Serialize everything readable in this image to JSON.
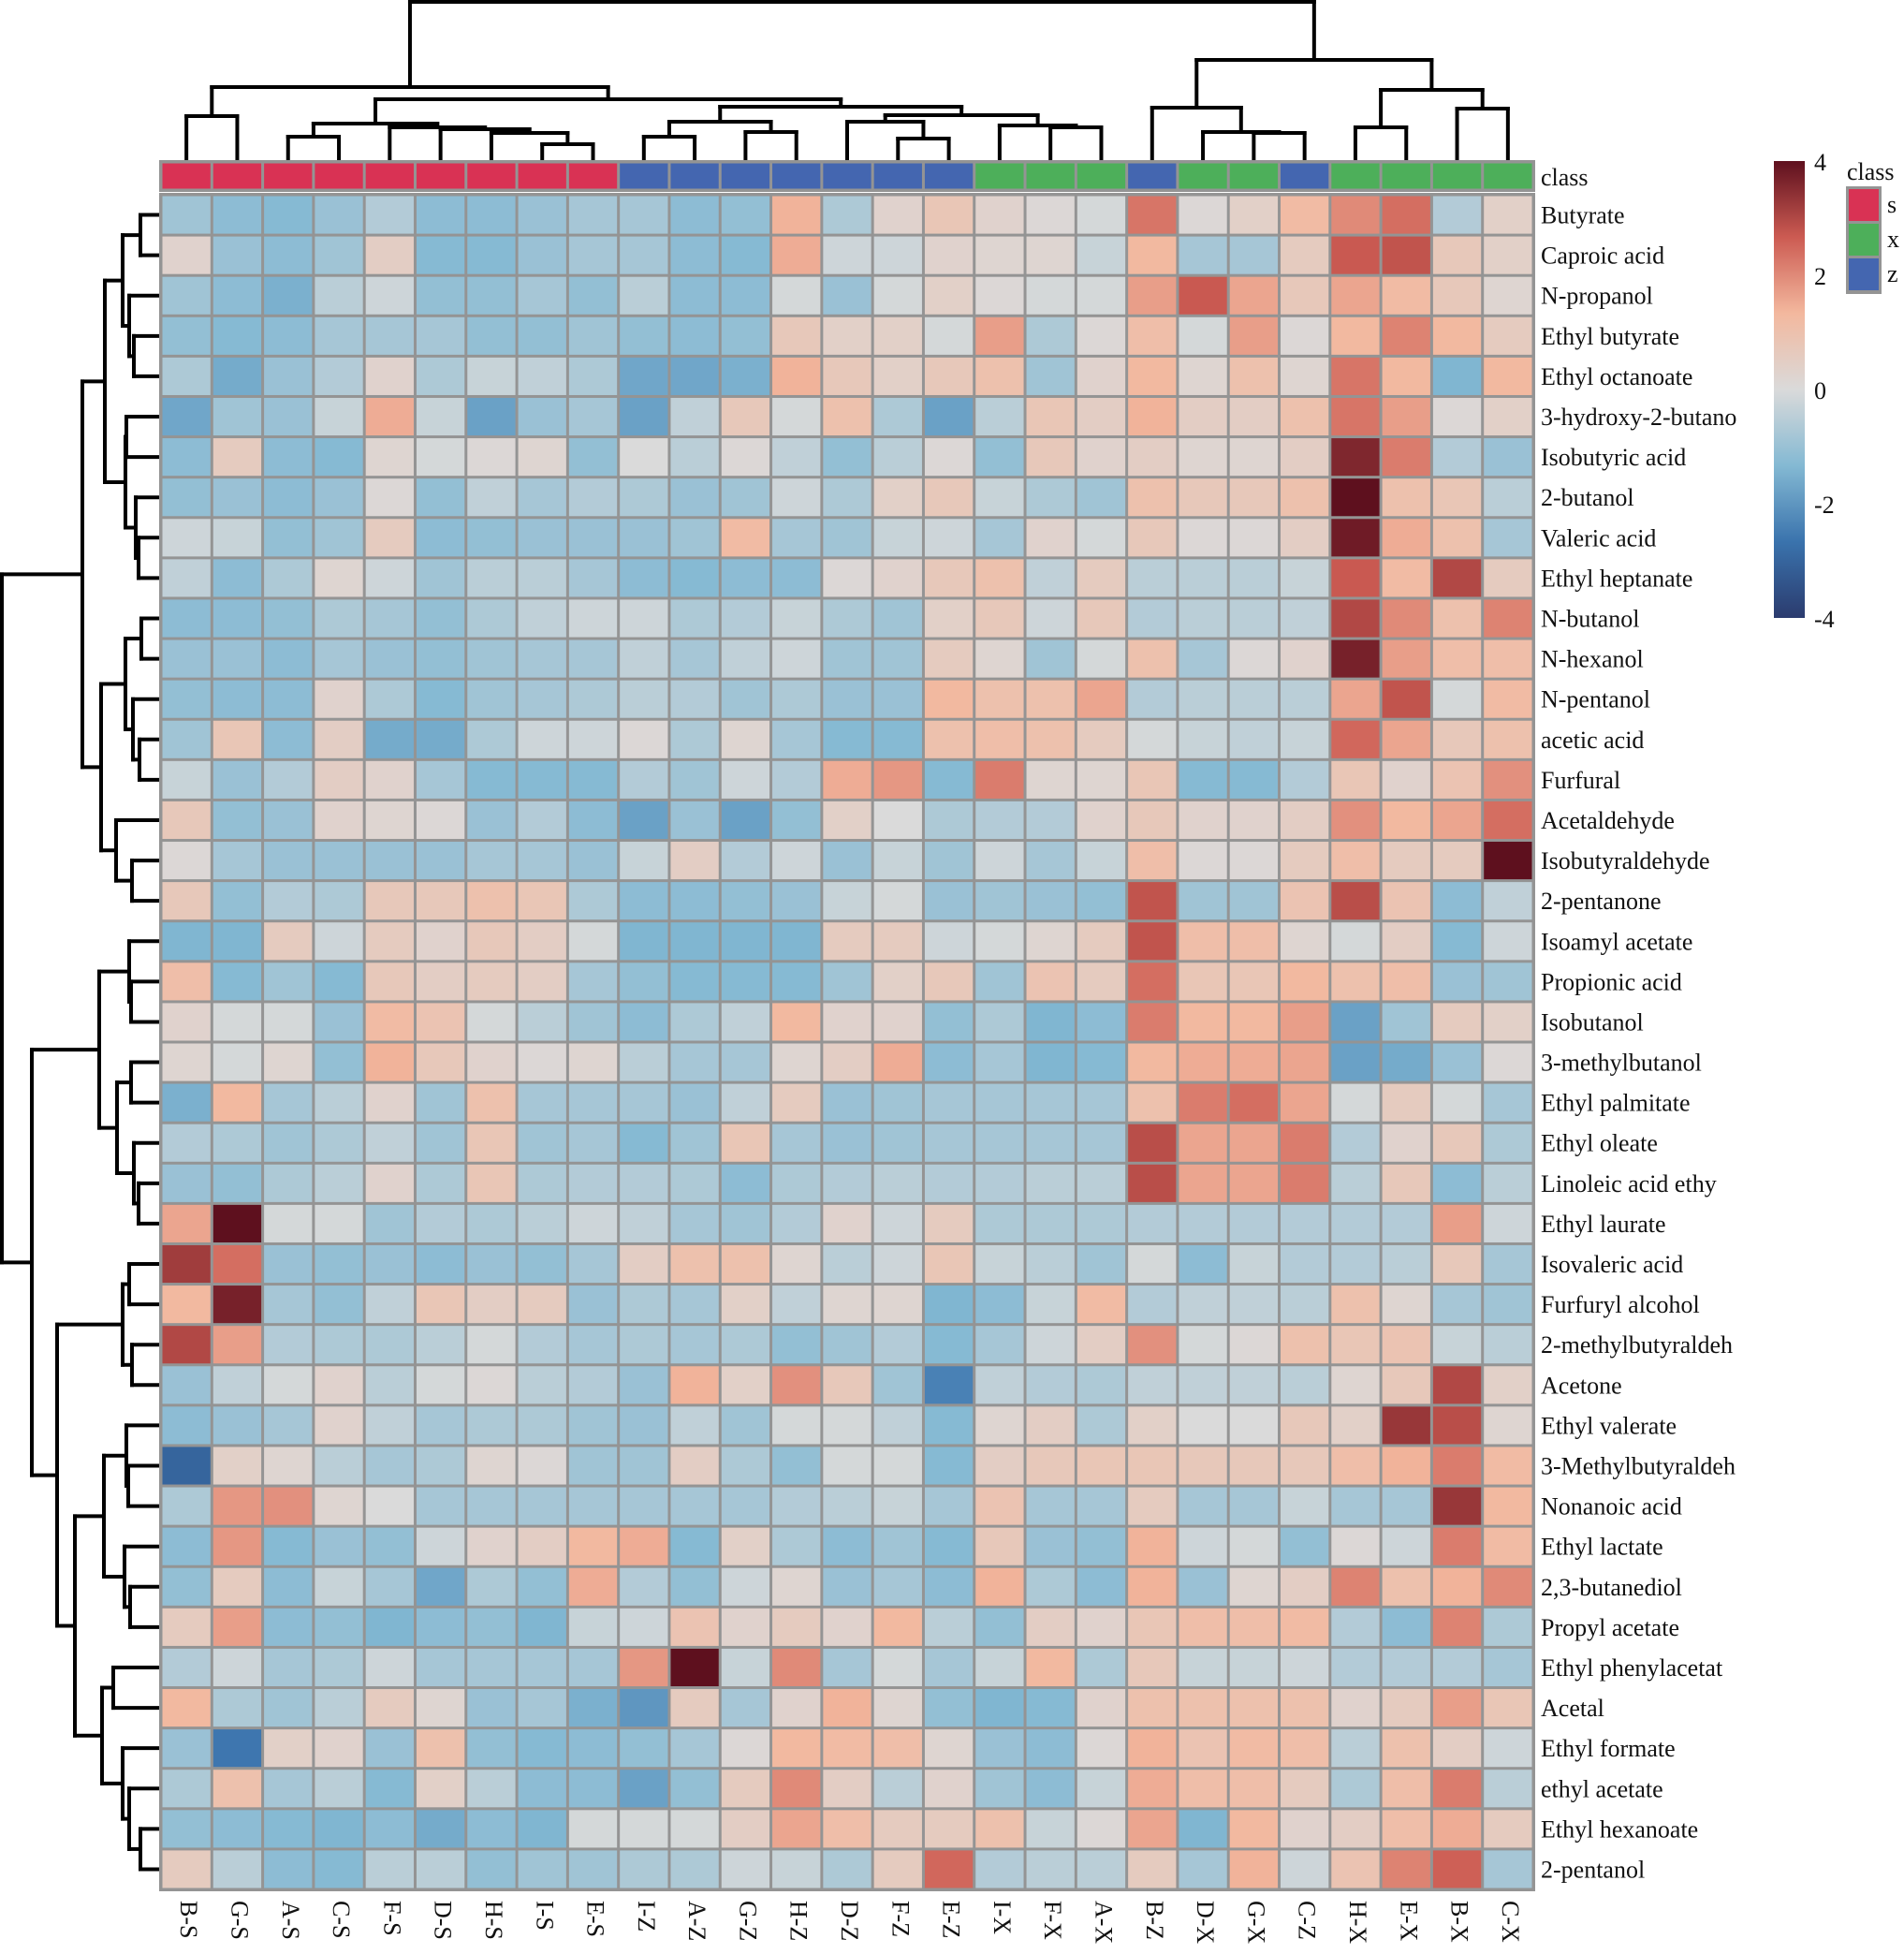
{
  "chart_data": {
    "type": "heatmap",
    "title": "",
    "columns": [
      "B-S",
      "G-S",
      "A-S",
      "C-S",
      "F-S",
      "D-S",
      "H-S",
      "I-S",
      "E-S",
      "I-Z",
      "A-Z",
      "G-Z",
      "H-Z",
      "D-Z",
      "F-Z",
      "E-Z",
      "I-X",
      "F-X",
      "A-X",
      "B-Z",
      "D-X",
      "G-X",
      "C-Z",
      "H-X",
      "E-X",
      "B-X",
      "C-X"
    ],
    "column_class": [
      "s",
      "s",
      "s",
      "s",
      "s",
      "s",
      "s",
      "s",
      "s",
      "z",
      "z",
      "z",
      "z",
      "z",
      "z",
      "z",
      "x",
      "x",
      "x",
      "z",
      "x",
      "x",
      "z",
      "x",
      "x",
      "x",
      "x"
    ],
    "rows": [
      "Butyrate",
      "Caproic acid",
      "N-propanol",
      "Ethyl butyrate",
      "Ethyl octanoate",
      "3-hydroxy-2-butano",
      "Isobutyric acid",
      "2-butanol",
      "Valeric acid",
      "Ethyl heptanate",
      "N-butanol",
      "N-hexanol",
      "N-pentanol",
      "acetic acid",
      "Furfural",
      "Acetaldehyde",
      "Isobutyraldehyde",
      "2-pentanone",
      "Isoamyl acetate",
      "Propionic acid",
      "Isobutanol",
      "3-methylbutanol",
      "Ethyl palmitate",
      "Ethyl oleate",
      "Linoleic acid ethy",
      "Ethyl laurate",
      "Isovaleric acid",
      "Furfuryl alcohol",
      "2-methylbutyraldeh",
      "Acetone",
      "Ethyl valerate",
      "3-Methylbutyraldeh",
      "Nonanoic acid",
      "Ethyl lactate",
      "2,3-butanediol",
      "Propyl acetate",
      "Ethyl phenylacetat",
      "Acetal",
      "Ethyl formate",
      "ethyl acetate",
      "Ethyl hexanoate",
      "2-pentanol"
    ],
    "values": [
      [
        -0.9,
        -1.2,
        -1.3,
        -1.0,
        -0.6,
        -1.2,
        -1.2,
        -1.0,
        -0.8,
        -0.8,
        -1.2,
        -1.1,
        1.4,
        -0.7,
        0.3,
        0.8,
        0.3,
        0.1,
        -0.1,
        2.3,
        0.1,
        0.4,
        1.2,
        2.0,
        2.4,
        -0.6,
        0.4
      ],
      [
        0.3,
        -1.0,
        -1.2,
        -0.9,
        0.5,
        -1.3,
        -1.3,
        -1.0,
        -0.8,
        -0.8,
        -1.2,
        -1.3,
        1.5,
        -0.2,
        -0.2,
        0.3,
        0.2,
        0.2,
        -0.3,
        1.3,
        -0.8,
        -0.8,
        0.6,
        2.7,
        2.8,
        0.7,
        0.4
      ],
      [
        -0.9,
        -1.2,
        -1.5,
        -0.5,
        -0.2,
        -1.1,
        -1.1,
        -0.8,
        -1.1,
        -0.5,
        -1.2,
        -1.2,
        -0.1,
        -1.0,
        -0.1,
        0.4,
        0.1,
        -0.1,
        -0.1,
        1.7,
        2.7,
        1.6,
        0.7,
        1.6,
        1.2,
        0.7,
        0.2
      ],
      [
        -1.1,
        -1.3,
        -1.2,
        -0.8,
        -0.8,
        -0.8,
        -1.1,
        -1.1,
        -0.9,
        -1.1,
        -1.2,
        -1.1,
        0.7,
        0.4,
        0.4,
        -0.1,
        1.7,
        -0.7,
        0.1,
        1.1,
        -0.1,
        1.7,
        0.1,
        1.3,
        2.1,
        1.3,
        0.6
      ],
      [
        -0.7,
        -1.6,
        -1.0,
        -0.6,
        0.3,
        -0.7,
        -0.3,
        -0.4,
        -0.7,
        -1.7,
        -1.7,
        -1.5,
        1.4,
        0.7,
        0.4,
        0.7,
        1.0,
        -0.9,
        0.3,
        1.3,
        0.2,
        1.0,
        0.2,
        2.3,
        1.3,
        -1.4,
        1.3
      ],
      [
        -1.7,
        -0.9,
        -1.0,
        -0.3,
        1.5,
        -0.3,
        -1.8,
        -1.0,
        -0.8,
        -1.8,
        -0.4,
        0.7,
        -0.1,
        1.0,
        -0.7,
        -1.8,
        -0.5,
        0.8,
        0.5,
        1.4,
        0.5,
        0.5,
        1.0,
        2.3,
        1.7,
        0.1,
        0.4
      ],
      [
        -1.2,
        0.6,
        -1.2,
        -1.3,
        0.2,
        -0.1,
        0.1,
        0.2,
        -1.1,
        0.0,
        -0.5,
        0.1,
        -0.4,
        -1.1,
        -0.5,
        0.1,
        -1.1,
        0.7,
        0.3,
        0.5,
        0.2,
        0.2,
        0.5,
        3.6,
        2.2,
        -0.6,
        -1.0
      ],
      [
        -1.1,
        -1.0,
        -1.2,
        -1.0,
        0.1,
        -1.1,
        -0.4,
        -0.8,
        -0.6,
        -0.7,
        -1.0,
        -0.9,
        -0.2,
        -0.7,
        0.4,
        0.7,
        -0.3,
        -0.7,
        -0.9,
        1.0,
        0.7,
        0.7,
        1.0,
        4.0,
        1.0,
        0.8,
        -0.5
      ],
      [
        -0.2,
        -0.3,
        -1.1,
        -0.9,
        0.6,
        -1.2,
        -1.1,
        -1.0,
        -1.0,
        -1.0,
        -0.9,
        1.2,
        -0.8,
        -0.9,
        -0.3,
        -0.2,
        -0.8,
        0.3,
        -0.1,
        0.7,
        0.1,
        0.1,
        0.5,
        3.8,
        1.5,
        1.0,
        -0.8
      ],
      [
        -0.4,
        -1.2,
        -0.7,
        0.2,
        -0.2,
        -0.9,
        -0.5,
        -0.5,
        -0.8,
        -1.2,
        -1.3,
        -1.2,
        -1.2,
        0.1,
        0.3,
        0.7,
        1.0,
        -0.4,
        0.6,
        -0.5,
        -0.5,
        -0.5,
        -0.3,
        2.7,
        1.2,
        3.0,
        0.6
      ],
      [
        -1.2,
        -1.2,
        -1.1,
        -0.7,
        -0.8,
        -1.1,
        -0.7,
        -0.4,
        -0.2,
        -0.2,
        -0.7,
        -0.6,
        -0.3,
        -0.7,
        -0.9,
        0.4,
        0.7,
        -0.2,
        0.7,
        -0.6,
        -0.5,
        -0.5,
        -0.4,
        3.0,
        2.0,
        1.0,
        2.1
      ],
      [
        -1.0,
        -1.0,
        -1.2,
        -0.8,
        -1.0,
        -1.1,
        -0.9,
        -0.8,
        -0.8,
        -0.4,
        -0.8,
        -0.4,
        -0.2,
        -0.9,
        -0.9,
        0.6,
        0.2,
        -0.9,
        -0.1,
        1.0,
        -0.8,
        0.1,
        0.3,
        3.7,
        1.7,
        1.1,
        1.1
      ],
      [
        -1.1,
        -1.2,
        -1.2,
        0.3,
        -0.7,
        -1.3,
        -0.9,
        -0.8,
        -0.7,
        -0.5,
        -0.6,
        -0.9,
        -0.7,
        -1.0,
        -1.0,
        1.3,
        1.0,
        1.0,
        1.6,
        -0.6,
        -0.5,
        -0.5,
        -0.5,
        1.6,
        2.8,
        -0.1,
        1.2
      ],
      [
        -0.9,
        0.8,
        -1.2,
        0.5,
        -1.6,
        -1.6,
        -0.7,
        -0.2,
        -0.2,
        0.1,
        -0.7,
        0.2,
        -0.8,
        -1.3,
        -1.3,
        1.0,
        1.1,
        1.0,
        0.6,
        -0.1,
        -0.3,
        -0.4,
        -0.3,
        2.5,
        1.6,
        0.7,
        1.0
      ],
      [
        -0.3,
        -1.0,
        -0.6,
        0.5,
        0.3,
        -0.8,
        -1.3,
        -1.3,
        -1.3,
        -0.6,
        -0.9,
        -0.2,
        -0.6,
        1.5,
        1.8,
        -1.3,
        2.2,
        0.2,
        0.2,
        0.8,
        -1.3,
        -1.3,
        -0.6,
        0.8,
        0.3,
        0.9,
        1.9
      ],
      [
        0.7,
        -1.1,
        -1.0,
        0.3,
        0.2,
        0.1,
        -1.0,
        -0.6,
        -1.2,
        -1.8,
        -1.0,
        -1.8,
        -1.1,
        0.4,
        0.0,
        -0.7,
        -0.6,
        -0.6,
        0.3,
        0.7,
        0.3,
        0.3,
        0.5,
        1.9,
        1.3,
        1.6,
        2.4
      ],
      [
        0.1,
        -0.8,
        -1.0,
        -1.0,
        -1.0,
        -1.0,
        -0.8,
        -0.8,
        -1.0,
        -0.3,
        0.5,
        -0.6,
        -0.2,
        -1.0,
        -0.3,
        -0.9,
        -0.2,
        -0.8,
        -0.3,
        1.1,
        0.1,
        0.1,
        0.6,
        1.1,
        0.6,
        0.6,
        4.0
      ],
      [
        0.7,
        -1.1,
        -0.6,
        -0.7,
        0.7,
        0.7,
        1.0,
        0.8,
        -0.7,
        -1.2,
        -1.2,
        -1.1,
        -1.0,
        -0.3,
        -0.1,
        -1.0,
        -0.9,
        -1.0,
        -1.1,
        2.8,
        -0.9,
        -0.9,
        0.9,
        2.9,
        0.9,
        -1.2,
        -0.4
      ],
      [
        -1.4,
        -1.4,
        0.6,
        -0.2,
        0.6,
        0.3,
        0.7,
        0.5,
        -0.1,
        -1.4,
        -1.4,
        -1.4,
        -1.4,
        0.6,
        0.6,
        -0.2,
        -0.1,
        0.2,
        0.6,
        2.8,
        1.1,
        1.1,
        0.2,
        -0.1,
        0.5,
        -1.3,
        -0.2
      ],
      [
        1.1,
        -1.3,
        -0.9,
        -1.3,
        0.7,
        0.5,
        0.6,
        0.5,
        -0.8,
        -1.1,
        -1.3,
        -1.3,
        -1.3,
        -0.9,
        0.4,
        0.7,
        -0.9,
        0.9,
        0.6,
        2.4,
        0.8,
        0.8,
        1.3,
        1.0,
        1.1,
        -1.0,
        -0.9
      ],
      [
        0.3,
        -0.1,
        -0.1,
        -1.0,
        1.2,
        0.9,
        -0.1,
        -0.5,
        -0.9,
        -1.2,
        -0.7,
        -0.4,
        1.3,
        0.3,
        0.3,
        -1.1,
        -0.7,
        -1.4,
        -1.2,
        2.2,
        1.3,
        1.3,
        1.7,
        -1.8,
        -0.9,
        0.6,
        0.4
      ],
      [
        0.2,
        -0.1,
        0.2,
        -1.1,
        1.4,
        0.7,
        0.3,
        0.1,
        0.2,
        -0.5,
        -0.8,
        -0.8,
        0.2,
        0.5,
        1.5,
        -1.2,
        -0.8,
        -1.4,
        -1.3,
        1.3,
        1.5,
        1.5,
        1.6,
        -1.8,
        -1.6,
        -1.0,
        0.1
      ],
      [
        -1.5,
        1.3,
        -0.8,
        -0.5,
        0.3,
        -0.9,
        1.0,
        -0.8,
        -0.8,
        -0.8,
        -1.0,
        -0.4,
        0.6,
        -1.0,
        -0.9,
        -0.8,
        -0.8,
        -0.8,
        -0.8,
        1.0,
        2.2,
        2.4,
        1.6,
        -0.1,
        0.6,
        -0.1,
        -0.8
      ],
      [
        -0.6,
        -0.7,
        -0.9,
        -0.7,
        -0.4,
        -0.9,
        0.8,
        -0.9,
        -0.8,
        -1.3,
        -0.9,
        0.8,
        -0.8,
        -1.0,
        -0.9,
        -0.8,
        -0.8,
        -0.8,
        -0.8,
        2.9,
        1.6,
        1.6,
        2.2,
        -0.6,
        0.3,
        0.7,
        -0.7
      ],
      [
        -1.0,
        -1.1,
        -0.7,
        -0.5,
        0.3,
        -0.7,
        0.8,
        -0.7,
        -0.6,
        -0.6,
        -0.7,
        -1.2,
        -0.7,
        -0.6,
        -0.5,
        -0.6,
        -0.6,
        -0.5,
        -0.5,
        2.9,
        1.6,
        1.6,
        2.2,
        -0.5,
        0.7,
        -1.2,
        -0.5
      ],
      [
        1.6,
        4.0,
        -0.1,
        -0.1,
        -0.9,
        -0.6,
        -0.7,
        -0.5,
        -0.2,
        -0.4,
        -0.8,
        -0.9,
        -0.6,
        0.3,
        -0.2,
        0.6,
        -0.7,
        -0.7,
        -0.7,
        -0.6,
        -0.6,
        -0.6,
        -0.6,
        -0.6,
        -0.6,
        1.7,
        -0.2
      ],
      [
        3.2,
        2.4,
        -1.0,
        -1.1,
        -1.0,
        -1.2,
        -1.0,
        -1.1,
        -0.8,
        0.5,
        1.0,
        1.0,
        0.2,
        -0.5,
        -0.2,
        0.8,
        -0.3,
        -0.5,
        -0.9,
        -0.1,
        -1.2,
        -0.3,
        -0.6,
        -0.6,
        -0.5,
        0.7,
        -0.8
      ],
      [
        1.3,
        3.7,
        -0.8,
        -1.1,
        -0.4,
        0.8,
        0.5,
        0.6,
        -1.0,
        -0.7,
        -0.8,
        0.4,
        -0.4,
        0.2,
        0.2,
        -1.4,
        -1.2,
        -0.3,
        1.2,
        -0.6,
        -0.4,
        -0.4,
        -0.5,
        1.0,
        0.2,
        -0.8,
        -0.9
      ],
      [
        3.0,
        1.7,
        -0.6,
        -0.7,
        -0.7,
        -0.5,
        -0.1,
        -0.6,
        -0.8,
        -0.7,
        -0.8,
        -0.7,
        -1.1,
        -0.9,
        -0.6,
        -1.3,
        -0.8,
        -0.2,
        0.5,
        1.9,
        -0.1,
        0.1,
        1.0,
        0.8,
        0.9,
        -0.3,
        -0.5
      ],
      [
        -1.0,
        -0.4,
        -0.1,
        0.3,
        -0.5,
        -0.1,
        0.1,
        -0.5,
        -0.6,
        -1.0,
        1.4,
        0.4,
        1.9,
        0.7,
        -0.9,
        -2.4,
        -0.4,
        -0.6,
        -0.7,
        -0.4,
        -0.4,
        -0.4,
        -0.5,
        0.2,
        0.7,
        3.0,
        0.4
      ],
      [
        -1.2,
        -1.0,
        -0.8,
        0.3,
        -0.4,
        -0.8,
        -0.7,
        -0.7,
        -0.9,
        -1.0,
        -0.4,
        -0.9,
        -0.1,
        -0.1,
        -0.4,
        -1.3,
        0.2,
        0.5,
        -0.7,
        0.4,
        0.0,
        0.0,
        0.7,
        0.4,
        3.3,
        2.9,
        0.2
      ],
      [
        -3.0,
        0.4,
        0.2,
        -0.5,
        -0.8,
        -0.7,
        0.2,
        0.1,
        -0.9,
        -0.9,
        0.5,
        -0.7,
        -1.1,
        -0.1,
        -0.1,
        -1.3,
        0.5,
        0.7,
        0.8,
        0.8,
        0.7,
        0.7,
        0.7,
        1.1,
        1.4,
        2.2,
        1.2
      ],
      [
        -0.7,
        1.8,
        1.9,
        0.2,
        0.0,
        -0.8,
        -0.8,
        -0.8,
        -0.8,
        -0.8,
        -0.8,
        -0.8,
        -0.6,
        -0.5,
        -0.3,
        -0.8,
        0.9,
        -0.8,
        -0.8,
        0.6,
        -0.8,
        -0.8,
        -0.3,
        -0.8,
        -0.8,
        3.3,
        1.3
      ],
      [
        -1.2,
        1.8,
        -1.3,
        -1.0,
        -1.1,
        -0.2,
        0.3,
        0.5,
        1.3,
        1.5,
        -1.3,
        0.4,
        -0.7,
        -1.2,
        -0.9,
        -1.3,
        0.7,
        -1.0,
        -1.1,
        1.4,
        -0.2,
        -0.1,
        -1.1,
        0.1,
        -0.2,
        2.2,
        1.2
      ],
      [
        -1.1,
        0.6,
        -1.2,
        -0.3,
        -0.8,
        -1.7,
        -0.7,
        -1.1,
        1.5,
        -0.6,
        -1.1,
        -0.2,
        0.2,
        -1.0,
        -0.8,
        -1.2,
        1.4,
        -0.7,
        -1.2,
        1.4,
        -1.0,
        0.2,
        0.5,
        2.1,
        1.0,
        1.4,
        2.0
      ],
      [
        0.6,
        1.7,
        -1.2,
        -1.1,
        -1.4,
        -1.2,
        -1.1,
        -1.4,
        -0.3,
        -0.2,
        0.9,
        0.3,
        0.6,
        0.3,
        1.3,
        -0.5,
        -1.1,
        0.5,
        0.3,
        0.8,
        1.1,
        1.1,
        1.2,
        -0.6,
        -1.2,
        2.1,
        -0.7
      ],
      [
        -0.6,
        -0.2,
        -0.8,
        -0.7,
        -0.2,
        -0.8,
        -0.8,
        -0.8,
        -0.8,
        1.8,
        4.0,
        -0.3,
        2.0,
        -0.8,
        -0.1,
        -0.8,
        -0.3,
        1.3,
        -0.7,
        0.7,
        -0.3,
        -0.3,
        -0.2,
        -0.6,
        -0.6,
        -0.6,
        -0.8
      ],
      [
        1.3,
        -0.7,
        -0.9,
        -0.5,
        0.6,
        0.2,
        -1.0,
        -0.8,
        -1.5,
        -2.0,
        0.6,
        -0.8,
        0.3,
        1.4,
        0.2,
        -1.1,
        -1.4,
        -1.3,
        0.3,
        1.0,
        1.0,
        1.0,
        1.0,
        0.3,
        0.6,
        1.7,
        0.8
      ],
      [
        -1.0,
        -2.6,
        0.4,
        0.3,
        -1.0,
        1.0,
        -1.1,
        -1.3,
        -1.2,
        -1.1,
        -0.8,
        0.1,
        1.3,
        1.2,
        1.1,
        0.2,
        -1.0,
        -1.2,
        0.1,
        1.4,
        0.9,
        1.2,
        1.1,
        -0.5,
        1.0,
        0.5,
        -0.2
      ],
      [
        -0.7,
        1.0,
        -0.8,
        -0.5,
        -1.3,
        0.4,
        -0.5,
        -1.2,
        -1.2,
        -1.8,
        -1.1,
        0.6,
        2.0,
        0.5,
        -0.5,
        0.3,
        -0.9,
        -1.2,
        -0.3,
        1.5,
        1.1,
        1.1,
        0.6,
        -0.7,
        1.1,
        2.2,
        -0.5
      ],
      [
        -1.1,
        -1.2,
        -1.3,
        -1.4,
        -1.2,
        -1.6,
        -1.2,
        -1.4,
        -0.1,
        -0.1,
        -0.1,
        0.5,
        1.6,
        1.1,
        0.6,
        0.6,
        1.0,
        -0.3,
        0.1,
        1.6,
        -1.4,
        1.3,
        0.3,
        0.5,
        1.1,
        1.5,
        0.6
      ],
      [
        0.6,
        -0.5,
        -1.2,
        -1.3,
        -0.5,
        -0.5,
        -1.1,
        -0.9,
        -0.9,
        -0.7,
        -0.7,
        -0.2,
        -0.3,
        -0.7,
        0.6,
        2.5,
        -0.6,
        -0.5,
        -0.5,
        0.6,
        -0.8,
        1.4,
        -0.2,
        0.9,
        2.1,
        2.6,
        -0.8
      ]
    ],
    "value_range": [
      -4,
      4
    ],
    "colorbar_ticks": [
      4,
      2,
      0,
      -2,
      -4
    ],
    "colorscale": [
      "#2b3b6e",
      "#3a73ad",
      "#84b9d3",
      "#dadada",
      "#f3b89e",
      "#cc5b52",
      "#5e101e"
    ],
    "class_annotation": {
      "title": "class",
      "legend": [
        {
          "label": "s",
          "color": "#d93254"
        },
        {
          "label": "x",
          "color": "#4daf5a"
        },
        {
          "label": "z",
          "color": "#4466b0"
        }
      ]
    },
    "column_dendrogram": true,
    "row_dendrogram": true,
    "legend_position": "top-right"
  }
}
